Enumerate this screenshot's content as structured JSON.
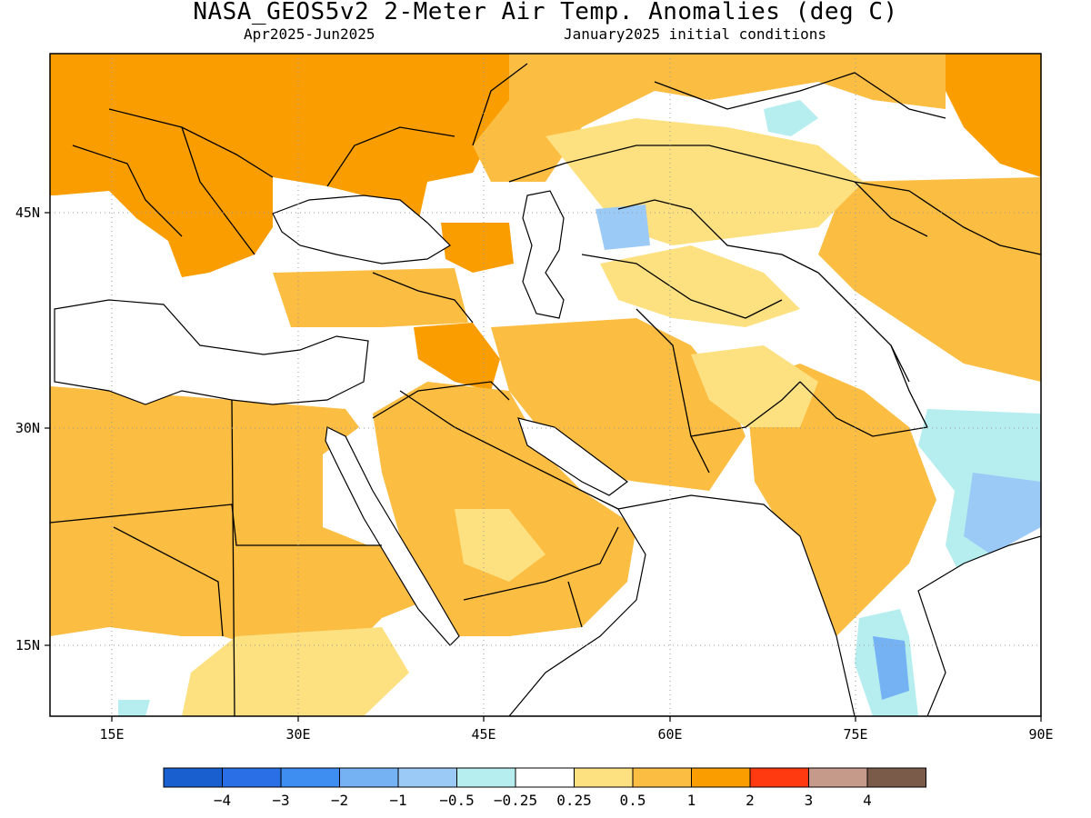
{
  "title": "NASA_GEOS5v2 2-Meter Air Temp. Anomalies (deg C)",
  "subtitle_left": "Apr2025-Jun2025",
  "subtitle_right": "January2025 initial conditions",
  "x_ticks": [
    "15E",
    "30E",
    "45E",
    "60E",
    "75E",
    "90E"
  ],
  "y_ticks": [
    "45N",
    "30N",
    "15N"
  ],
  "colorbar": {
    "colors": [
      "#1a5fd0",
      "#2b6fe6",
      "#3d8ef0",
      "#74b2f4",
      "#9ccaf6",
      "#b6eef0",
      "#ffffff",
      "#fde07f",
      "#fbbd42",
      "#fa9d00",
      "#ff3a10",
      "#c69a8a",
      "#7a5a48"
    ],
    "labels": [
      "-4",
      "-3",
      "-2",
      "-1",
      "-0.5",
      "-0.25",
      "0.25",
      "0.5",
      "1",
      "2",
      "3",
      "4"
    ]
  },
  "map_colors": {
    "strong_warm": "#fa9d00",
    "warm": "#fbbd42",
    "mild_warm": "#fde07f",
    "mild_cool": "#b6eef0",
    "cool": "#9ccaf6",
    "cooler": "#74b2f4",
    "grid": "#9a9a9a",
    "coast": "#000000"
  }
}
